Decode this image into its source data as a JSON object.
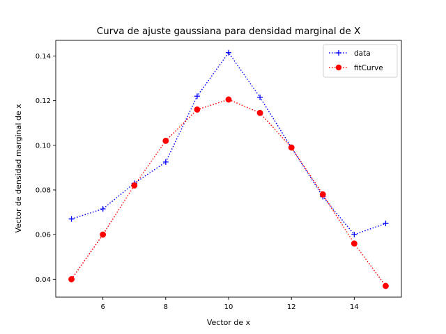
{
  "chart_data": {
    "type": "line",
    "title": "Curva de ajuste gaussiana para densidad marginal de X",
    "xlabel": "Vector de x",
    "ylabel": "Vector de densidad marginal de x",
    "xlim": [
      4.5,
      15.5
    ],
    "ylim": [
      0.032,
      0.147
    ],
    "xticks": [
      6,
      8,
      10,
      12,
      14
    ],
    "yticks": [
      0.04,
      0.06,
      0.08,
      0.1,
      0.12,
      0.14
    ],
    "ytick_labels": [
      "0.04",
      "0.06",
      "0.08",
      "0.10",
      "0.12",
      "0.14"
    ],
    "grid": false,
    "legend": "top-right",
    "x": [
      5,
      6,
      7,
      8,
      9,
      10,
      11,
      12,
      13,
      14,
      15
    ],
    "series": [
      {
        "name": "data",
        "color": "#0000ff",
        "marker": "plus",
        "linestyle": "dotted",
        "values": [
          0.067,
          0.0715,
          0.083,
          0.0925,
          0.122,
          0.1415,
          0.1215,
          0.099,
          0.077,
          0.06,
          0.065
        ]
      },
      {
        "name": "fitCurve",
        "color": "#ff0000",
        "marker": "circle",
        "linestyle": "dotted",
        "values": [
          0.04,
          0.06,
          0.082,
          0.102,
          0.116,
          0.1205,
          0.1145,
          0.099,
          0.078,
          0.056,
          0.037
        ]
      }
    ]
  }
}
